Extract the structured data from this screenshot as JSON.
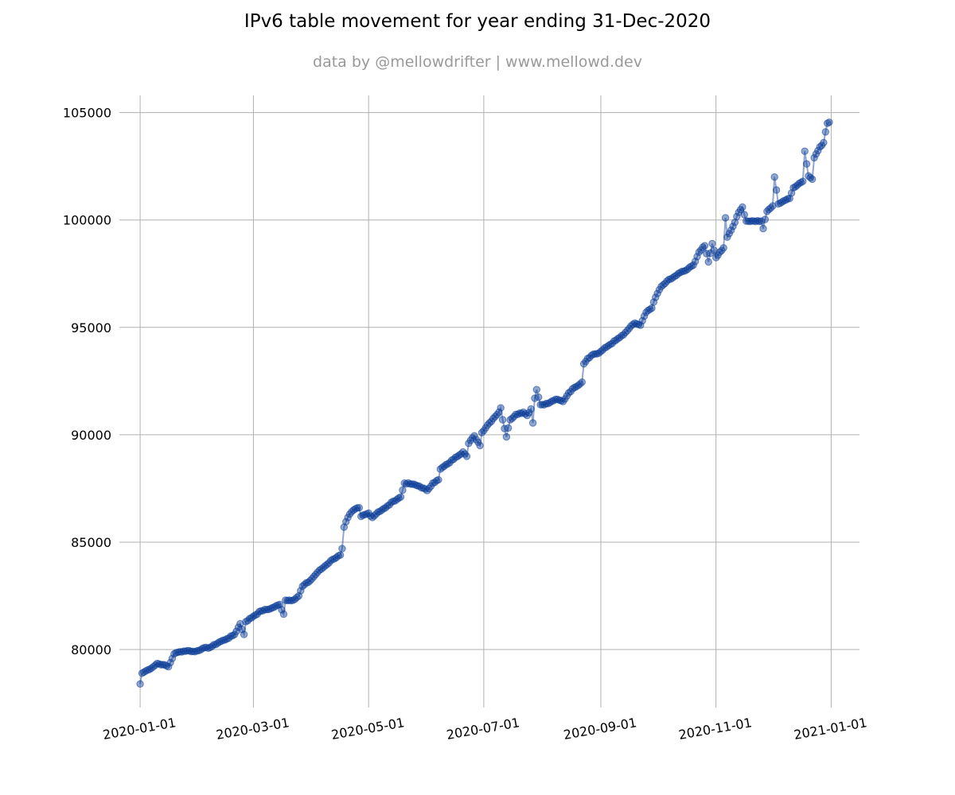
{
  "chart_data": {
    "type": "line",
    "title": "IPv6 table movement for year ending 31-Dec-2020",
    "subtitle": "data by @mellowdrifter | www.mellowd.dev",
    "xlabel": "",
    "ylabel": "",
    "x_type": "date",
    "xlim": [
      "2019-12-21",
      "2021-01-16"
    ],
    "ylim": [
      77300,
      105800
    ],
    "x_ticks": [
      "2020-01-01",
      "2020-03-01",
      "2020-05-01",
      "2020-07-01",
      "2020-09-01",
      "2020-11-01",
      "2021-01-01"
    ],
    "y_ticks": [
      80000,
      85000,
      90000,
      95000,
      100000,
      105000
    ],
    "grid": true,
    "series": [
      {
        "color": "#0a3c96",
        "marker": "circle",
        "points": [
          [
            "2020-01-01",
            78400
          ],
          [
            "2020-01-02",
            78900
          ],
          [
            "2020-01-05",
            79050
          ],
          [
            "2020-01-08",
            79200
          ],
          [
            "2020-01-10",
            79350
          ],
          [
            "2020-01-13",
            79300
          ],
          [
            "2020-01-16",
            79200
          ],
          [
            "2020-01-19",
            79800
          ],
          [
            "2020-01-22",
            79900
          ],
          [
            "2020-01-26",
            79950
          ],
          [
            "2020-01-30",
            79900
          ],
          [
            "2020-02-03",
            80050
          ],
          [
            "2020-02-07",
            80100
          ],
          [
            "2020-02-12",
            80350
          ],
          [
            "2020-02-16",
            80500
          ],
          [
            "2020-02-20",
            80700
          ],
          [
            "2020-02-23",
            81200
          ],
          [
            "2020-02-25",
            80700
          ],
          [
            "2020-02-26",
            81300
          ],
          [
            "2020-03-01",
            81550
          ],
          [
            "2020-03-05",
            81800
          ],
          [
            "2020-03-10",
            81900
          ],
          [
            "2020-03-15",
            82100
          ],
          [
            "2020-03-17",
            81650
          ],
          [
            "2020-03-18",
            82300
          ],
          [
            "2020-03-22",
            82300
          ],
          [
            "2020-03-25",
            82500
          ],
          [
            "2020-03-27",
            82950
          ],
          [
            "2020-03-31",
            83200
          ],
          [
            "2020-04-04",
            83600
          ],
          [
            "2020-04-08",
            83900
          ],
          [
            "2020-04-12",
            84200
          ],
          [
            "2020-04-16",
            84400
          ],
          [
            "2020-04-17",
            84700
          ],
          [
            "2020-04-18",
            85700
          ],
          [
            "2020-04-19",
            85950
          ],
          [
            "2020-04-21",
            86300
          ],
          [
            "2020-04-24",
            86550
          ],
          [
            "2020-04-26",
            86600
          ],
          [
            "2020-04-27",
            86200
          ],
          [
            "2020-05-01",
            86350
          ],
          [
            "2020-05-03",
            86150
          ],
          [
            "2020-05-06",
            86400
          ],
          [
            "2020-05-10",
            86600
          ],
          [
            "2020-05-14",
            86900
          ],
          [
            "2020-05-18",
            87100
          ],
          [
            "2020-05-20",
            87750
          ],
          [
            "2020-05-24",
            87700
          ],
          [
            "2020-05-28",
            87600
          ],
          [
            "2020-06-01",
            87400
          ],
          [
            "2020-06-04",
            87750
          ],
          [
            "2020-06-07",
            87900
          ],
          [
            "2020-06-08",
            88400
          ],
          [
            "2020-06-12",
            88650
          ],
          [
            "2020-06-16",
            88950
          ],
          [
            "2020-06-20",
            89200
          ],
          [
            "2020-06-22",
            89000
          ],
          [
            "2020-06-23",
            89600
          ],
          [
            "2020-06-26",
            89950
          ],
          [
            "2020-06-29",
            89500
          ],
          [
            "2020-06-30",
            90100
          ],
          [
            "2020-07-03",
            90450
          ],
          [
            "2020-07-06",
            90750
          ],
          [
            "2020-07-09",
            91050
          ],
          [
            "2020-07-10",
            91250
          ],
          [
            "2020-07-11",
            90700
          ],
          [
            "2020-07-13",
            89900
          ],
          [
            "2020-07-15",
            90700
          ],
          [
            "2020-07-18",
            90950
          ],
          [
            "2020-07-22",
            91050
          ],
          [
            "2020-07-24",
            90900
          ],
          [
            "2020-07-26",
            91200
          ],
          [
            "2020-07-27",
            90550
          ],
          [
            "2020-07-28",
            91700
          ],
          [
            "2020-07-29",
            92100
          ],
          [
            "2020-07-31",
            91400
          ],
          [
            "2020-08-04",
            91450
          ],
          [
            "2020-08-08",
            91650
          ],
          [
            "2020-08-12",
            91550
          ],
          [
            "2020-08-15",
            91950
          ],
          [
            "2020-08-18",
            92200
          ],
          [
            "2020-08-22",
            92450
          ],
          [
            "2020-08-23",
            93300
          ],
          [
            "2020-08-25",
            93550
          ],
          [
            "2020-08-28",
            93750
          ],
          [
            "2020-08-31",
            93800
          ],
          [
            "2020-09-02",
            93950
          ],
          [
            "2020-09-05",
            94150
          ],
          [
            "2020-09-09",
            94400
          ],
          [
            "2020-09-13",
            94650
          ],
          [
            "2020-09-16",
            94950
          ],
          [
            "2020-09-19",
            95200
          ],
          [
            "2020-09-22",
            95100
          ],
          [
            "2020-09-25",
            95700
          ],
          [
            "2020-09-28",
            95900
          ],
          [
            "2020-09-30",
            96400
          ],
          [
            "2020-10-03",
            96900
          ],
          [
            "2020-10-06",
            97150
          ],
          [
            "2020-10-09",
            97300
          ],
          [
            "2020-10-13",
            97550
          ],
          [
            "2020-10-16",
            97650
          ],
          [
            "2020-10-20",
            97900
          ],
          [
            "2020-10-23",
            98500
          ],
          [
            "2020-10-26",
            98800
          ],
          [
            "2020-10-28",
            98050
          ],
          [
            "2020-10-30",
            98900
          ],
          [
            "2020-11-01",
            98250
          ],
          [
            "2020-11-03",
            98500
          ],
          [
            "2020-11-05",
            98700
          ],
          [
            "2020-11-06",
            100100
          ],
          [
            "2020-11-07",
            99200
          ],
          [
            "2020-11-10",
            99700
          ],
          [
            "2020-11-13",
            100350
          ],
          [
            "2020-11-15",
            100600
          ],
          [
            "2020-11-17",
            99950
          ],
          [
            "2020-11-21",
            99950
          ],
          [
            "2020-11-25",
            99950
          ],
          [
            "2020-11-26",
            99600
          ],
          [
            "2020-11-28",
            100400
          ],
          [
            "2020-12-01",
            100650
          ],
          [
            "2020-12-02",
            102000
          ],
          [
            "2020-12-04",
            100750
          ],
          [
            "2020-12-07",
            100900
          ],
          [
            "2020-12-10",
            101000
          ],
          [
            "2020-12-12",
            101500
          ],
          [
            "2020-12-15",
            101700
          ],
          [
            "2020-12-17",
            101800
          ],
          [
            "2020-12-18",
            103200
          ],
          [
            "2020-12-20",
            102050
          ],
          [
            "2020-12-22",
            101900
          ],
          [
            "2020-12-23",
            102900
          ],
          [
            "2020-12-26",
            103400
          ],
          [
            "2020-12-28",
            103600
          ],
          [
            "2020-12-29",
            104100
          ],
          [
            "2020-12-30",
            104500
          ],
          [
            "2020-12-31",
            104550
          ]
        ]
      }
    ]
  }
}
